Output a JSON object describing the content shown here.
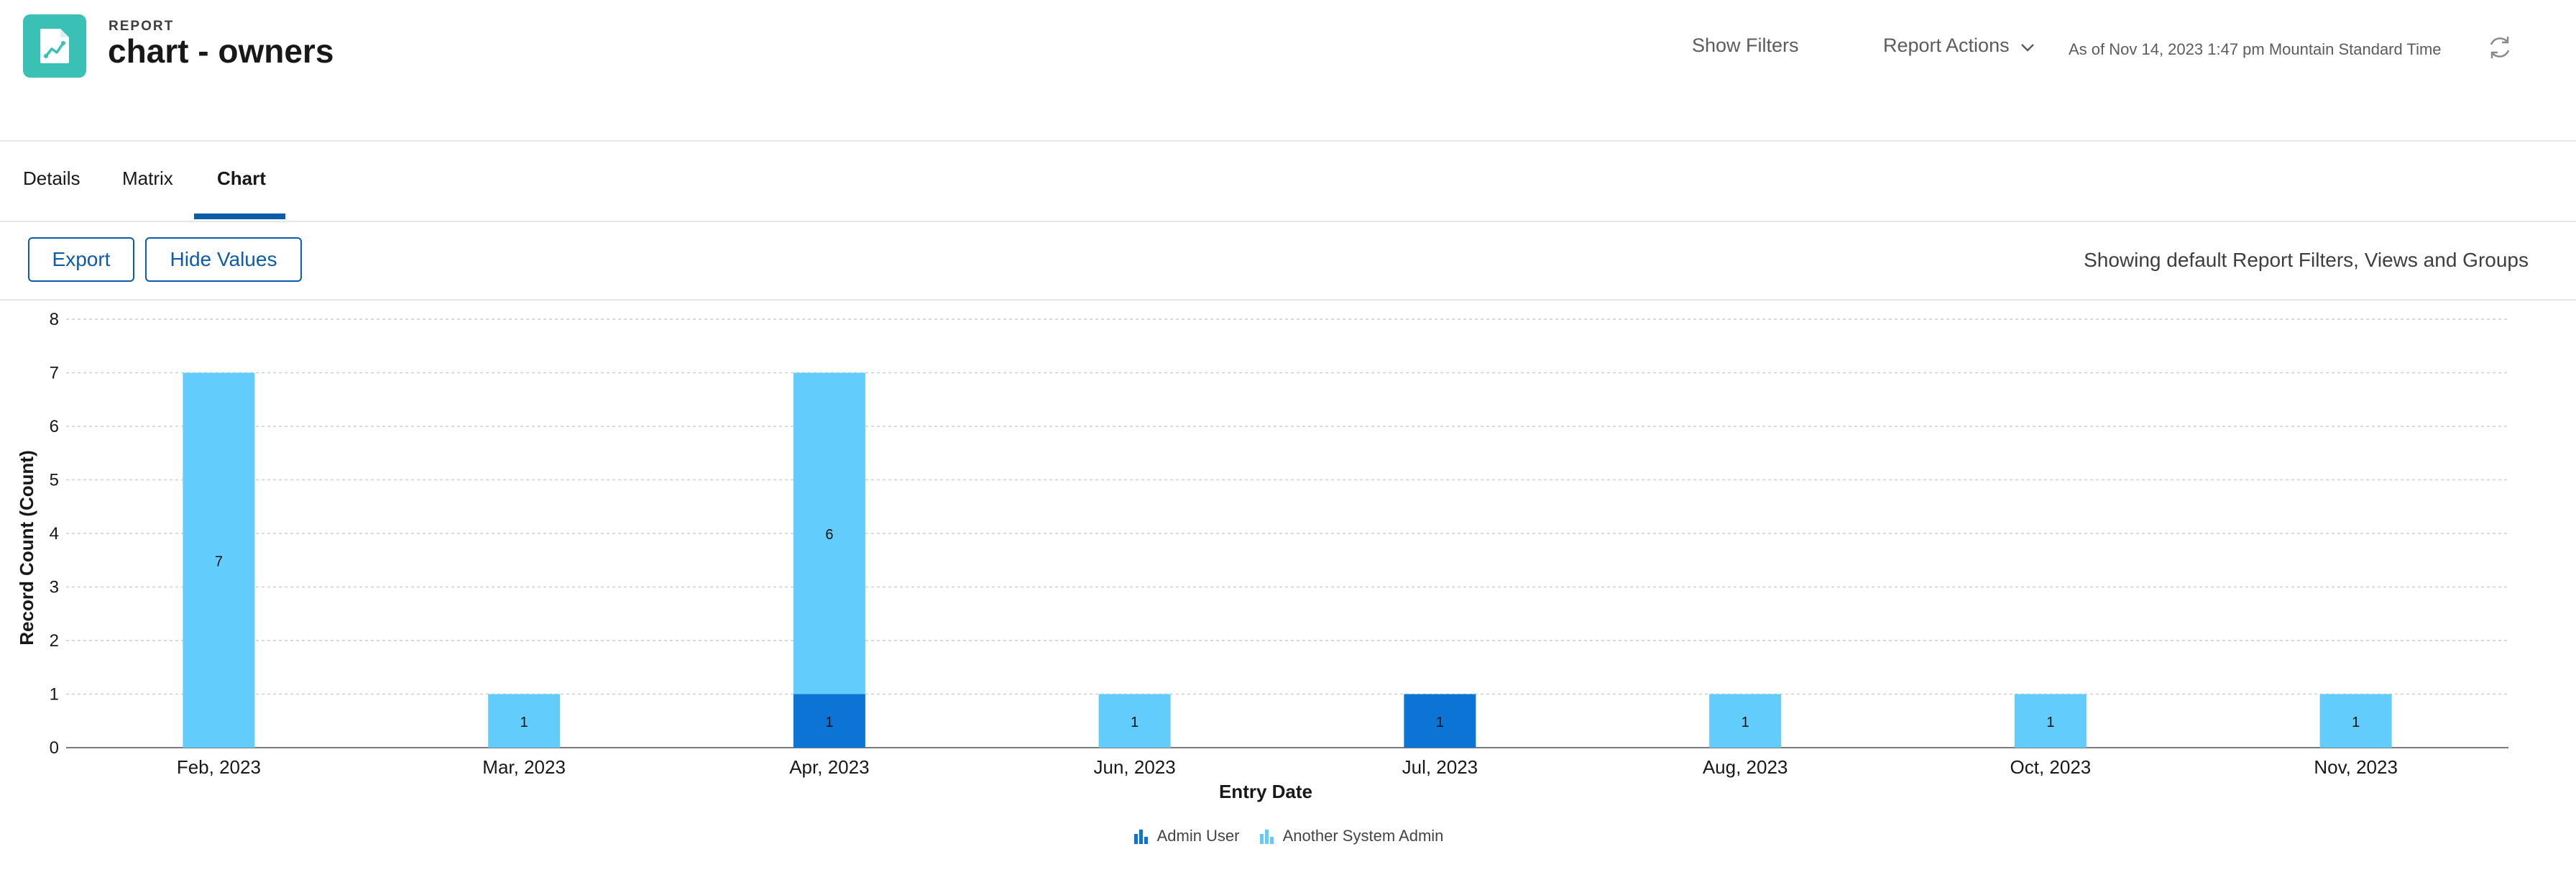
{
  "header": {
    "eyebrow": "REPORT",
    "title": "chart - owners",
    "show_filters": "Show Filters",
    "report_actions": "Report Actions",
    "as_of": "As of Nov 14, 2023 1:47 pm Mountain Standard Time",
    "icons": {
      "app": "report-chart-icon",
      "refresh": "refresh-icon",
      "dropdown": "chevron-down-icon"
    }
  },
  "tabs": [
    {
      "label": "Details",
      "active": false
    },
    {
      "label": "Matrix",
      "active": false
    },
    {
      "label": "Chart",
      "active": true
    }
  ],
  "toolbar": {
    "export_label": "Export",
    "hide_values_label": "Hide Values",
    "filters_note": "Showing default Report Filters, Views and Groups"
  },
  "colors": {
    "accent": "#0b5cab",
    "app_icon": "#3bc0b5",
    "admin_user": "#0b74d4",
    "another_system_admin": "#62cdfd"
  },
  "chart_data": {
    "type": "bar",
    "stacked": true,
    "categories": [
      "Feb, 2023",
      "Mar, 2023",
      "Apr, 2023",
      "Jun, 2023",
      "Jul, 2023",
      "Aug, 2023",
      "Oct, 2023",
      "Nov, 2023"
    ],
    "series": [
      {
        "name": "Admin User",
        "color": "#0b74d4",
        "values": [
          0,
          0,
          1,
          0,
          1,
          0,
          0,
          0
        ]
      },
      {
        "name": "Another System Admin",
        "color": "#62cdfd",
        "values": [
          7,
          1,
          6,
          1,
          0,
          1,
          1,
          1
        ]
      }
    ],
    "xlabel": "Entry Date",
    "ylabel": "Record Count (Count)",
    "ylim": [
      0,
      8
    ],
    "yticks": [
      0,
      1,
      2,
      3,
      4,
      5,
      6,
      7,
      8
    ],
    "grid": true,
    "legend_position": "bottom-center",
    "show_values": true
  }
}
